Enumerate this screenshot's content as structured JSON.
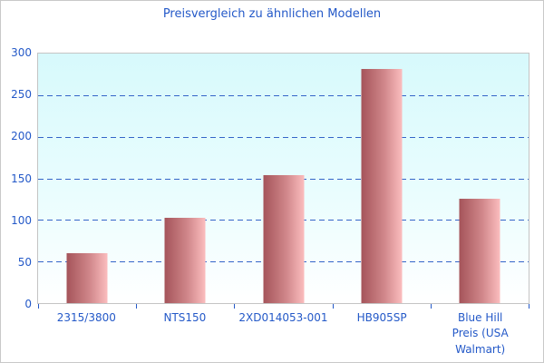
{
  "chart_data": {
    "type": "bar",
    "title": "Preisvergleich zu ähnlichen Modellen",
    "categories": [
      "2315/3800",
      "NTS150",
      "2XD014053-001",
      "HB905SP",
      "Blue Hill\nPreis (USA Walmart)"
    ],
    "values": [
      60,
      103,
      154,
      281,
      126
    ],
    "xlabel": "",
    "ylabel": "",
    "ylim": [
      0,
      300
    ],
    "yticks": [
      0,
      50,
      100,
      150,
      200,
      250,
      300
    ],
    "grid": "horizontal-dashed",
    "legend_position": "none",
    "colors": {
      "accent_text": "#2459c8",
      "gridline": "#3565c8",
      "bar_gradient_from": "#a5545a",
      "bar_gradient_to": "#fbbdbe",
      "plot_bg_top": "#d7f9fc",
      "plot_bg_bottom": "#ffffff",
      "plot_border": "#c4c4c4",
      "frame_border": "#c9c9c9"
    }
  }
}
